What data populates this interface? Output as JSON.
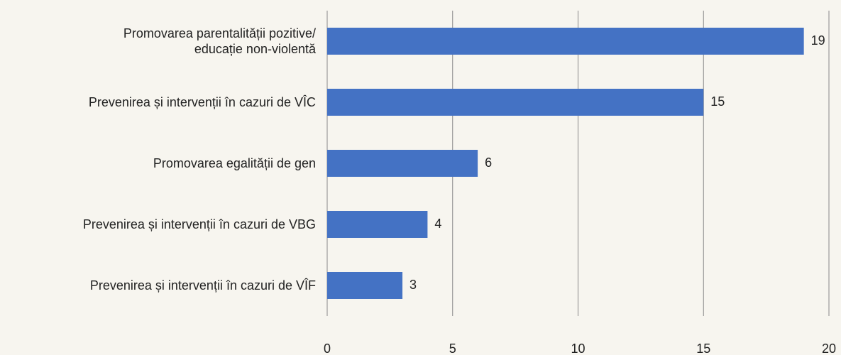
{
  "chart_data": {
    "type": "bar",
    "orientation": "horizontal",
    "categories": [
      "Promovarea parentalității pozitive/\neducație non-violentă",
      "Prevenirea și intervenții în cazuri de VÎC",
      "Promovarea egalității de gen",
      "Prevenirea și intervenții în cazuri de VBG",
      "Prevenirea și intervenții în cazuri de VÎF"
    ],
    "values": [
      19,
      15,
      6,
      4,
      3
    ],
    "color": "#4472c4",
    "xlim": [
      0,
      20
    ],
    "xticks": [
      0,
      5,
      10,
      15,
      20
    ],
    "grid": true
  }
}
